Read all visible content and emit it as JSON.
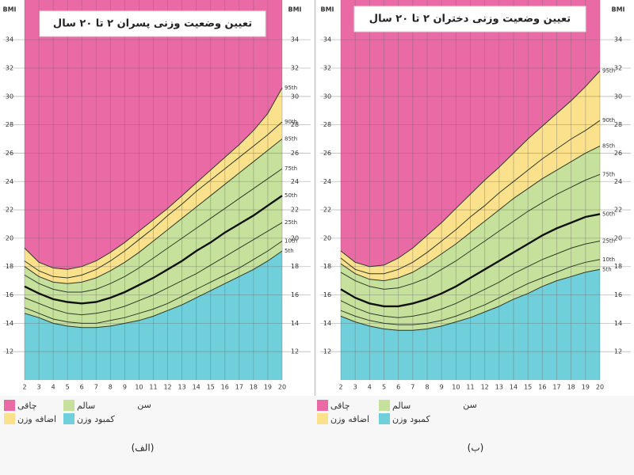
{
  "chart_data": [
    {
      "type": "line",
      "title": "تعیین وضعیت وزنی پسران ۲ تا ۲۰ سال",
      "ylabel": "BMI",
      "xlabel": "سن",
      "caption": "(الف)",
      "x": [
        2,
        3,
        4,
        5,
        6,
        7,
        8,
        9,
        10,
        11,
        12,
        13,
        14,
        15,
        16,
        17,
        18,
        19,
        20
      ],
      "xlim": [
        2,
        20
      ],
      "xticks": [
        2,
        3,
        4,
        5,
        6,
        7,
        8,
        9,
        10,
        11,
        12,
        13,
        14,
        15,
        16,
        17,
        18,
        19,
        20
      ],
      "ylim": [
        10,
        36.8
      ],
      "yticks": [
        12,
        14,
        16,
        18,
        20,
        22,
        24,
        26,
        28,
        30,
        32,
        34
      ],
      "grid": true,
      "series": [
        {
          "name": "5th",
          "color": "#2e3b2a",
          "width": 1,
          "values": [
            14.7,
            14.4,
            14.0,
            13.8,
            13.7,
            13.7,
            13.8,
            14.0,
            14.2,
            14.5,
            14.9,
            15.3,
            15.8,
            16.3,
            16.8,
            17.3,
            17.8,
            18.4,
            19.1
          ]
        },
        {
          "name": "10th",
          "color": "#2e3b2a",
          "width": 1,
          "values": [
            15.1,
            14.7,
            14.3,
            14.1,
            14.0,
            14.0,
            14.2,
            14.4,
            14.7,
            15.0,
            15.4,
            15.9,
            16.4,
            16.9,
            17.4,
            17.9,
            18.5,
            19.1,
            19.8
          ]
        },
        {
          "name": "25th",
          "color": "#2e3b2a",
          "width": 1,
          "values": [
            15.8,
            15.4,
            15.0,
            14.7,
            14.6,
            14.7,
            14.9,
            15.2,
            15.6,
            16.0,
            16.5,
            17.0,
            17.5,
            18.1,
            18.7,
            19.3,
            19.9,
            20.5,
            21.1
          ]
        },
        {
          "name": "50th",
          "color": "#111111",
          "width": 2.4,
          "values": [
            16.6,
            16.1,
            15.7,
            15.5,
            15.4,
            15.5,
            15.8,
            16.2,
            16.7,
            17.2,
            17.8,
            18.4,
            19.1,
            19.7,
            20.4,
            21.0,
            21.6,
            22.3,
            23.0
          ]
        },
        {
          "name": "75th",
          "color": "#2e3b2a",
          "width": 1,
          "values": [
            17.4,
            16.8,
            16.4,
            16.2,
            16.2,
            16.4,
            16.8,
            17.3,
            17.9,
            18.6,
            19.3,
            20.0,
            20.7,
            21.4,
            22.1,
            22.8,
            23.5,
            24.2,
            24.9
          ]
        },
        {
          "name": "85th",
          "color": "#2e3b2a",
          "width": 1,
          "values": [
            18.0,
            17.3,
            16.9,
            16.8,
            16.9,
            17.2,
            17.7,
            18.3,
            19.0,
            19.8,
            20.6,
            21.4,
            22.2,
            23.0,
            23.8,
            24.6,
            25.4,
            26.2,
            27.0
          ]
        },
        {
          "name": "90th",
          "color": "#2e3b2a",
          "width": 1,
          "values": [
            18.4,
            17.7,
            17.3,
            17.2,
            17.4,
            17.8,
            18.4,
            19.1,
            19.9,
            20.7,
            21.6,
            22.4,
            23.3,
            24.1,
            24.9,
            25.7,
            26.5,
            27.3,
            28.2
          ]
        },
        {
          "name": "95th",
          "color": "#2e3b2a",
          "width": 1,
          "values": [
            19.3,
            18.3,
            17.9,
            17.8,
            18.0,
            18.4,
            19.0,
            19.7,
            20.5,
            21.3,
            22.1,
            23.0,
            23.9,
            24.8,
            25.7,
            26.6,
            27.6,
            28.8,
            30.6
          ]
        }
      ],
      "legend": [
        {
          "name": "چاقی",
          "color": "#ea6aa5"
        },
        {
          "name": "اضافه وزن",
          "color": "#fbe18c"
        },
        {
          "name": "سالم",
          "color": "#c6e19c"
        },
        {
          "name": "کمبود وزن",
          "color": "#6fcfda"
        }
      ]
    },
    {
      "type": "line",
      "title": "تعیین وضعیت وزنی دختران ۲ تا ۲۰ سال",
      "ylabel": "BMI",
      "xlabel": "سن",
      "caption": "(ب)",
      "x": [
        2,
        3,
        4,
        5,
        6,
        7,
        8,
        9,
        10,
        11,
        12,
        13,
        14,
        15,
        16,
        17,
        18,
        19,
        20
      ],
      "xlim": [
        2,
        20
      ],
      "xticks": [
        2,
        3,
        4,
        5,
        6,
        7,
        8,
        9,
        10,
        11,
        12,
        13,
        14,
        15,
        16,
        17,
        18,
        19,
        20
      ],
      "ylim": [
        10,
        36.8
      ],
      "yticks": [
        12,
        14,
        16,
        18,
        20,
        22,
        24,
        26,
        28,
        30,
        32,
        34
      ],
      "grid": true,
      "series": [
        {
          "name": "5th",
          "color": "#2e3b2a",
          "width": 1,
          "values": [
            14.5,
            14.1,
            13.8,
            13.6,
            13.5,
            13.5,
            13.6,
            13.8,
            14.1,
            14.4,
            14.8,
            15.2,
            15.7,
            16.1,
            16.6,
            17.0,
            17.3,
            17.6,
            17.8
          ]
        },
        {
          "name": "10th",
          "color": "#2e3b2a",
          "width": 1,
          "values": [
            14.9,
            14.5,
            14.2,
            14.0,
            13.9,
            13.9,
            14.0,
            14.2,
            14.5,
            14.9,
            15.3,
            15.8,
            16.3,
            16.8,
            17.2,
            17.6,
            18.0,
            18.3,
            18.5
          ]
        },
        {
          "name": "25th",
          "color": "#2e3b2a",
          "width": 1,
          "values": [
            15.6,
            15.1,
            14.7,
            14.5,
            14.4,
            14.5,
            14.7,
            15.0,
            15.4,
            15.9,
            16.4,
            16.9,
            17.5,
            18.0,
            18.5,
            18.9,
            19.3,
            19.6,
            19.8
          ]
        },
        {
          "name": "50th",
          "color": "#111111",
          "width": 2.4,
          "values": [
            16.4,
            15.8,
            15.4,
            15.2,
            15.2,
            15.4,
            15.7,
            16.1,
            16.6,
            17.2,
            17.8,
            18.4,
            19.0,
            19.6,
            20.2,
            20.7,
            21.1,
            21.5,
            21.7
          ]
        },
        {
          "name": "75th",
          "color": "#2e3b2a",
          "width": 1,
          "values": [
            17.6,
            17.0,
            16.6,
            16.4,
            16.5,
            16.8,
            17.2,
            17.8,
            18.4,
            19.1,
            19.8,
            20.5,
            21.2,
            21.9,
            22.5,
            23.1,
            23.6,
            24.1,
            24.5
          ]
        },
        {
          "name": "85th",
          "color": "#2e3b2a",
          "width": 1,
          "values": [
            18.2,
            17.5,
            17.1,
            17.0,
            17.2,
            17.6,
            18.2,
            18.9,
            19.6,
            20.4,
            21.2,
            22.0,
            22.8,
            23.5,
            24.2,
            24.8,
            25.4,
            26.0,
            26.5
          ]
        },
        {
          "name": "90th",
          "color": "#2e3b2a",
          "width": 1,
          "values": [
            18.6,
            17.8,
            17.5,
            17.5,
            17.8,
            18.3,
            19.0,
            19.8,
            20.6,
            21.5,
            22.3,
            23.2,
            24.0,
            24.8,
            25.6,
            26.3,
            27.0,
            27.6,
            28.3
          ]
        },
        {
          "name": "95th",
          "color": "#2e3b2a",
          "width": 1,
          "values": [
            19.1,
            18.3,
            18.0,
            18.1,
            18.6,
            19.3,
            20.2,
            21.1,
            22.1,
            23.1,
            24.1,
            25.0,
            26.0,
            27.0,
            27.9,
            28.8,
            29.7,
            30.7,
            31.8
          ]
        }
      ],
      "legend": [
        {
          "name": "چاقی",
          "color": "#ea6aa5"
        },
        {
          "name": "اضافه وزن",
          "color": "#fbe18c"
        },
        {
          "name": "سالم",
          "color": "#c6e19c"
        },
        {
          "name": "کمبود وزن",
          "color": "#6fcfda"
        }
      ]
    }
  ]
}
